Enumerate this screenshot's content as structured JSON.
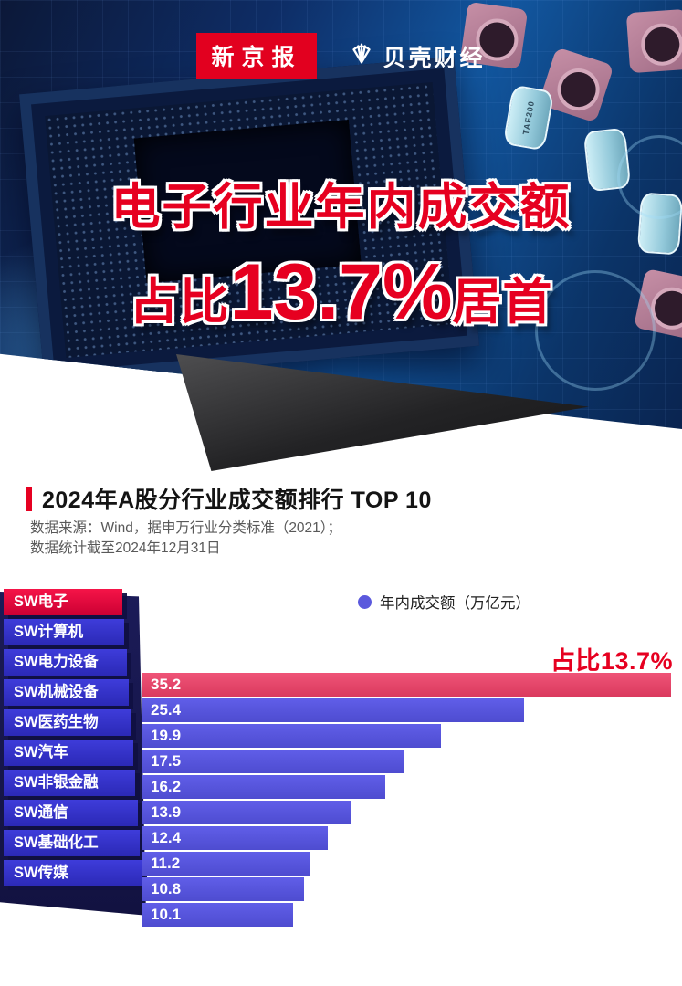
{
  "header": {
    "left_logo": "新京报",
    "right_logo": "贝壳财经"
  },
  "hero": {
    "title_line1": "电子行业年内成交额",
    "title_line2_prefix": "占比",
    "title_line2_value": "13.7%",
    "title_line2_suffix": "居首",
    "chip_label": "TAF200"
  },
  "section": {
    "title": "2024年A股分行业成交额排行 TOP 10",
    "source_line1": "数据来源：Wind，据申万行业分类标准（2021）；",
    "source_line2": "数据统计截至2024年12月31日"
  },
  "colors": {
    "brand_red": "#e2001f",
    "title_red": "#e60020",
    "bar_blue": "#5b59dd",
    "bar_red_highlight": "#e9486b",
    "label_blue": "#3230c8",
    "label_red_highlight": "#e6103c",
    "backdrop_navy": "#16164e",
    "source_gray": "#595959"
  },
  "chart_data": {
    "type": "bar",
    "orientation": "horizontal",
    "title": "2024年A股分行业成交额排行 TOP 10",
    "series_name": "年内成交额（万亿元）",
    "unit": "万亿元",
    "categories": [
      "SW电子",
      "SW计算机",
      "SW电力设备",
      "SW机械设备",
      "SW医药生物",
      "SW汽车",
      "SW非银金融",
      "SW通信",
      "SW基础化工",
      "SW传媒"
    ],
    "values": [
      35.2,
      25.4,
      19.9,
      17.5,
      16.2,
      13.9,
      12.4,
      11.2,
      10.8,
      10.1
    ],
    "xlim": [
      0,
      35.2
    ],
    "highlight_index": 0,
    "highlight_annotation": "占比13.7%",
    "legend_position": "top",
    "grid": false
  }
}
